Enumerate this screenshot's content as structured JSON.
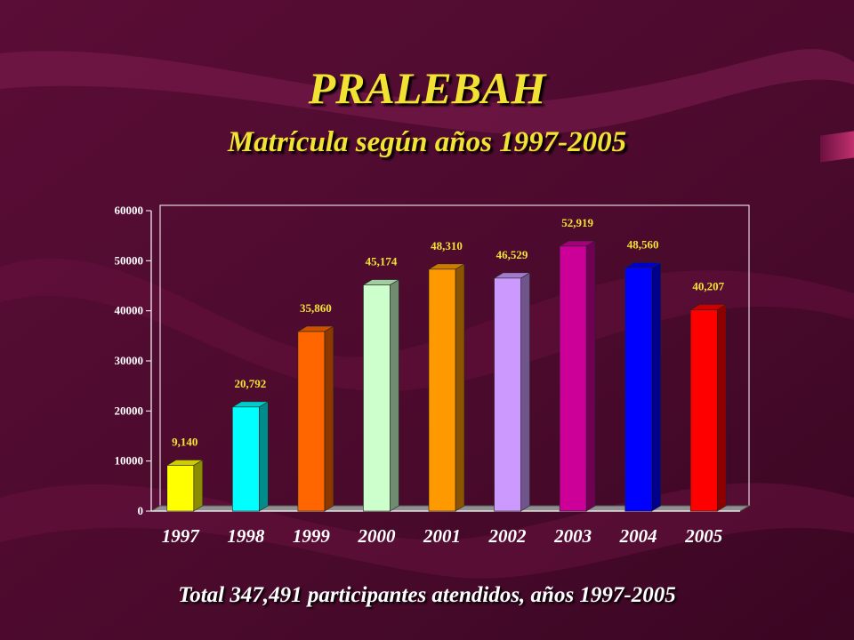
{
  "title": "PRALEBAH",
  "subtitle": "Matrícula según años 1997-2005",
  "footer": "Total 347,491 participantes atendidos, años 1997-2005",
  "colors": {
    "background": "#4a0a2c",
    "title": "#f2e233",
    "data_label": "#f2e233",
    "axis_text": "#ffffff",
    "footer": "#ffffff"
  },
  "chart_data": {
    "type": "bar",
    "categories": [
      "1997",
      "1998",
      "1999",
      "2000",
      "2001",
      "2002",
      "2003",
      "2004",
      "2005"
    ],
    "values": [
      9140,
      20792,
      35860,
      45174,
      48310,
      46529,
      52919,
      48560,
      40207
    ],
    "value_labels": [
      "9,140",
      "20,792",
      "35,860",
      "45,174",
      "48,310",
      "46,529",
      "52,919",
      "48,560",
      "40,207"
    ],
    "bar_colors": [
      "#ffff00",
      "#00ffff",
      "#ff6600",
      "#ccffcc",
      "#ff9900",
      "#cc99ff",
      "#cc0099",
      "#0000ff",
      "#ff0000"
    ],
    "ylim": [
      0,
      60000
    ],
    "yticks": [
      "0",
      "10000",
      "20000",
      "30000",
      "40000",
      "50000",
      "60000"
    ],
    "style": "3d-columns",
    "grid": false,
    "legend": "none"
  }
}
